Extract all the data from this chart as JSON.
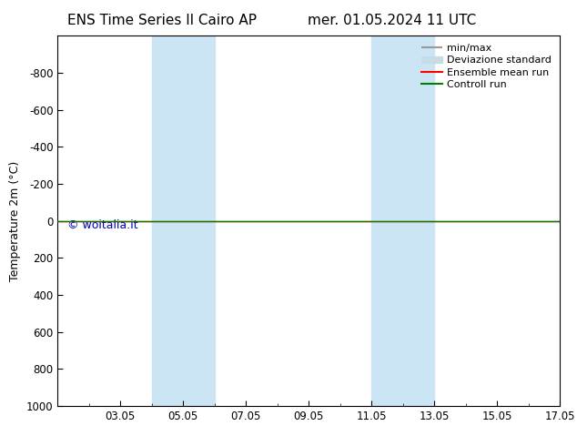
{
  "title_left": "ENS Time Series Il Cairo AP",
  "title_right": "mer. 01.05.2024 11 UTC",
  "ylabel": "Temperature 2m (°C)",
  "ylim": [
    -1000,
    1000
  ],
  "yticks": [
    -800,
    -600,
    -400,
    -200,
    0,
    200,
    400,
    600,
    800,
    1000
  ],
  "xlim_start": 1,
  "xlim_end": 17,
  "xtick_labels": [
    "03.05",
    "05.05",
    "07.05",
    "09.05",
    "11.05",
    "13.05",
    "15.05",
    "17.05"
  ],
  "xtick_positions": [
    3,
    5,
    7,
    9,
    11,
    13,
    15,
    17
  ],
  "shaded_bands": [
    {
      "x_start": 4.0,
      "x_end": 6.0
    },
    {
      "x_start": 11.0,
      "x_end": 13.0
    }
  ],
  "band_color": "#cce5f5",
  "line_y": 0,
  "ensemble_mean_color": "#ff0000",
  "control_run_color": "#008000",
  "minmax_color": "#999999",
  "std_color": "#c8dce8",
  "watermark_text": "© woitalia.it",
  "watermark_color": "#0000bb",
  "background_color": "#ffffff",
  "legend_labels": [
    "min/max",
    "Deviazione standard",
    "Ensemble mean run",
    "Controll run"
  ],
  "title_fontsize": 11,
  "axis_fontsize": 9,
  "tick_fontsize": 8.5,
  "legend_fontsize": 8
}
